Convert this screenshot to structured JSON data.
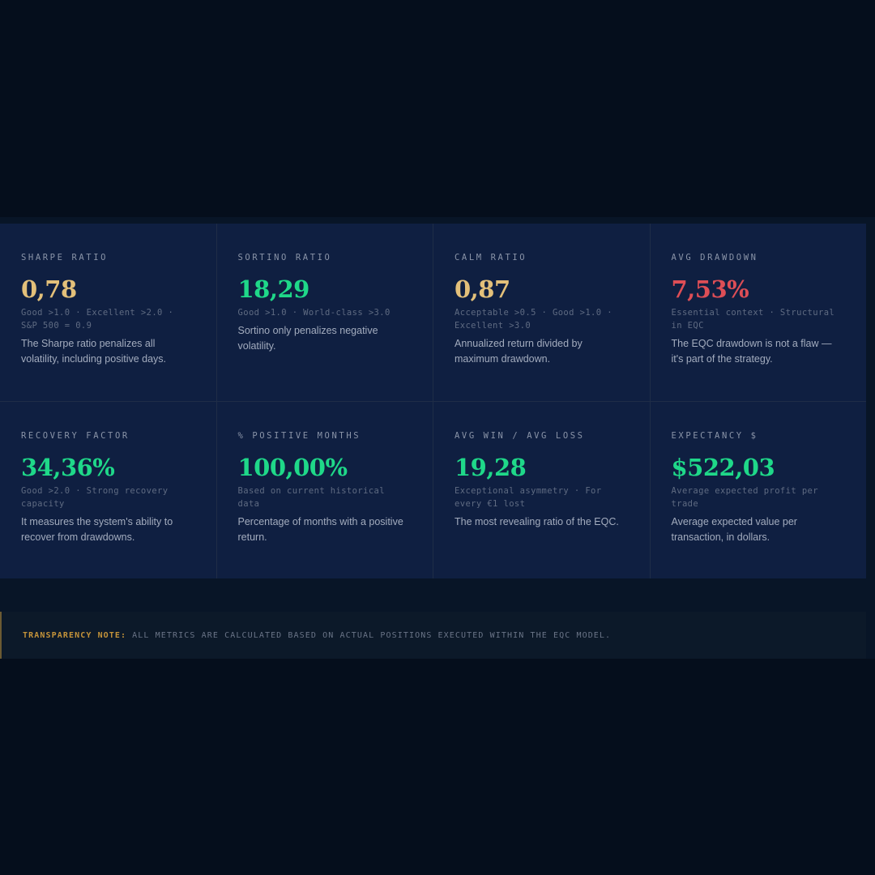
{
  "metrics": [
    {
      "label": "SHARPE RATIO",
      "value": "0,78",
      "tone": "gold",
      "benchmark": "Good >1.0 · Excellent >2.0 · S&P 500 = 0.9",
      "description": "The Sharpe ratio penalizes all volatility, including positive days."
    },
    {
      "label": "SORTINO RATIO",
      "value": "18,29",
      "tone": "green",
      "benchmark": "Good >1.0 · World-class >3.0",
      "description": "Sortino only penalizes negative volatility."
    },
    {
      "label": "CALM RATIO",
      "value": "0,87",
      "tone": "gold",
      "benchmark": "Acceptable >0.5 · Good >1.0 · Excellent >3.0",
      "description": "Annualized return divided by maximum drawdown."
    },
    {
      "label": "AVG DRAWDOWN",
      "value": "7,53%",
      "tone": "red",
      "benchmark": "Essential context · Structural in EQC",
      "description": "The EQC drawdown is not a flaw — it's part of the strategy."
    },
    {
      "label": "RECOVERY FACTOR",
      "value": "34,36%",
      "tone": "green",
      "benchmark": "Good >2.0 · Strong recovery capacity",
      "description": "It measures the system's ability to recover from drawdowns."
    },
    {
      "label": "% POSITIVE MONTHS",
      "value": "100,00%",
      "tone": "green",
      "benchmark": "Based on current historical data",
      "description": "Percentage of months with a positive return."
    },
    {
      "label": "AVG WIN / AVG LOSS",
      "value": "19,28",
      "tone": "green",
      "benchmark": "Exceptional asymmetry · For every €1 lost",
      "description": "The most revealing ratio of the EQC."
    },
    {
      "label": "EXPECTANCY $",
      "value": "$522,03",
      "tone": "green",
      "benchmark": "Average expected profit per trade",
      "description": "Average expected value per transaction, in dollars."
    }
  ],
  "note": {
    "label": "TRANSPARENCY NOTE:",
    "text": "ALL METRICS ARE CALCULATED BASED ON ACTUAL POSITIONS EXECUTED WITHIN THE EQC MODEL."
  },
  "colors": {
    "background": "#050e1c",
    "card": "#0f1f41",
    "gold": "#e3c07a",
    "green": "#1fd889",
    "red": "#dd4e56",
    "note_accent": "#c4933a"
  }
}
